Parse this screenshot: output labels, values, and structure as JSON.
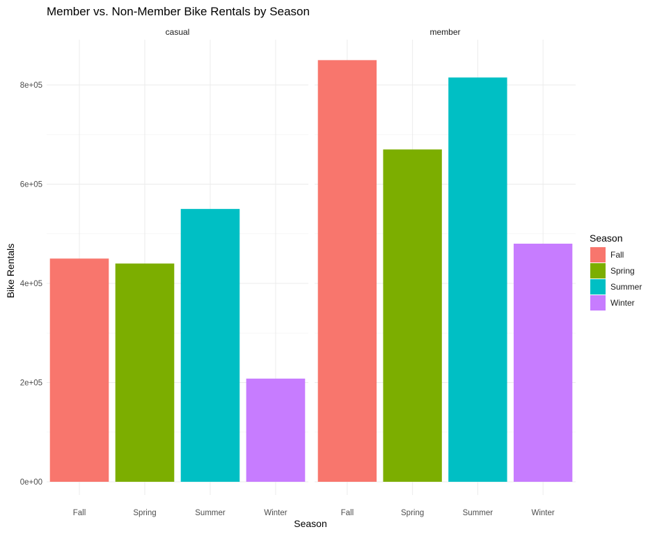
{
  "chart_data": {
    "type": "bar",
    "title": "Member vs. Non-Member Bike Rentals by Season",
    "xlabel": "Season",
    "ylabel": "Bike Rentals",
    "categories": [
      "Fall",
      "Spring",
      "Summer",
      "Winter"
    ],
    "ylim": [
      0,
      880000
    ],
    "yticks": [
      0,
      200000,
      400000,
      600000,
      800000
    ],
    "ytick_labels": [
      "0e+00",
      "2e+05",
      "4e+05",
      "6e+05",
      "8e+05"
    ],
    "grid": true,
    "facets": [
      {
        "name": "casual",
        "values": [
          450000,
          440000,
          550000,
          208000
        ]
      },
      {
        "name": "member",
        "values": [
          850000,
          670000,
          815000,
          480000
        ]
      }
    ],
    "legend": {
      "title": "Season",
      "position": "right",
      "entries": [
        "Fall",
        "Spring",
        "Summer",
        "Winter"
      ]
    },
    "colors": {
      "Fall": "#F8766D",
      "Spring": "#7CAE00",
      "Summer": "#00BFC4",
      "Winter": "#C77CFF"
    }
  }
}
